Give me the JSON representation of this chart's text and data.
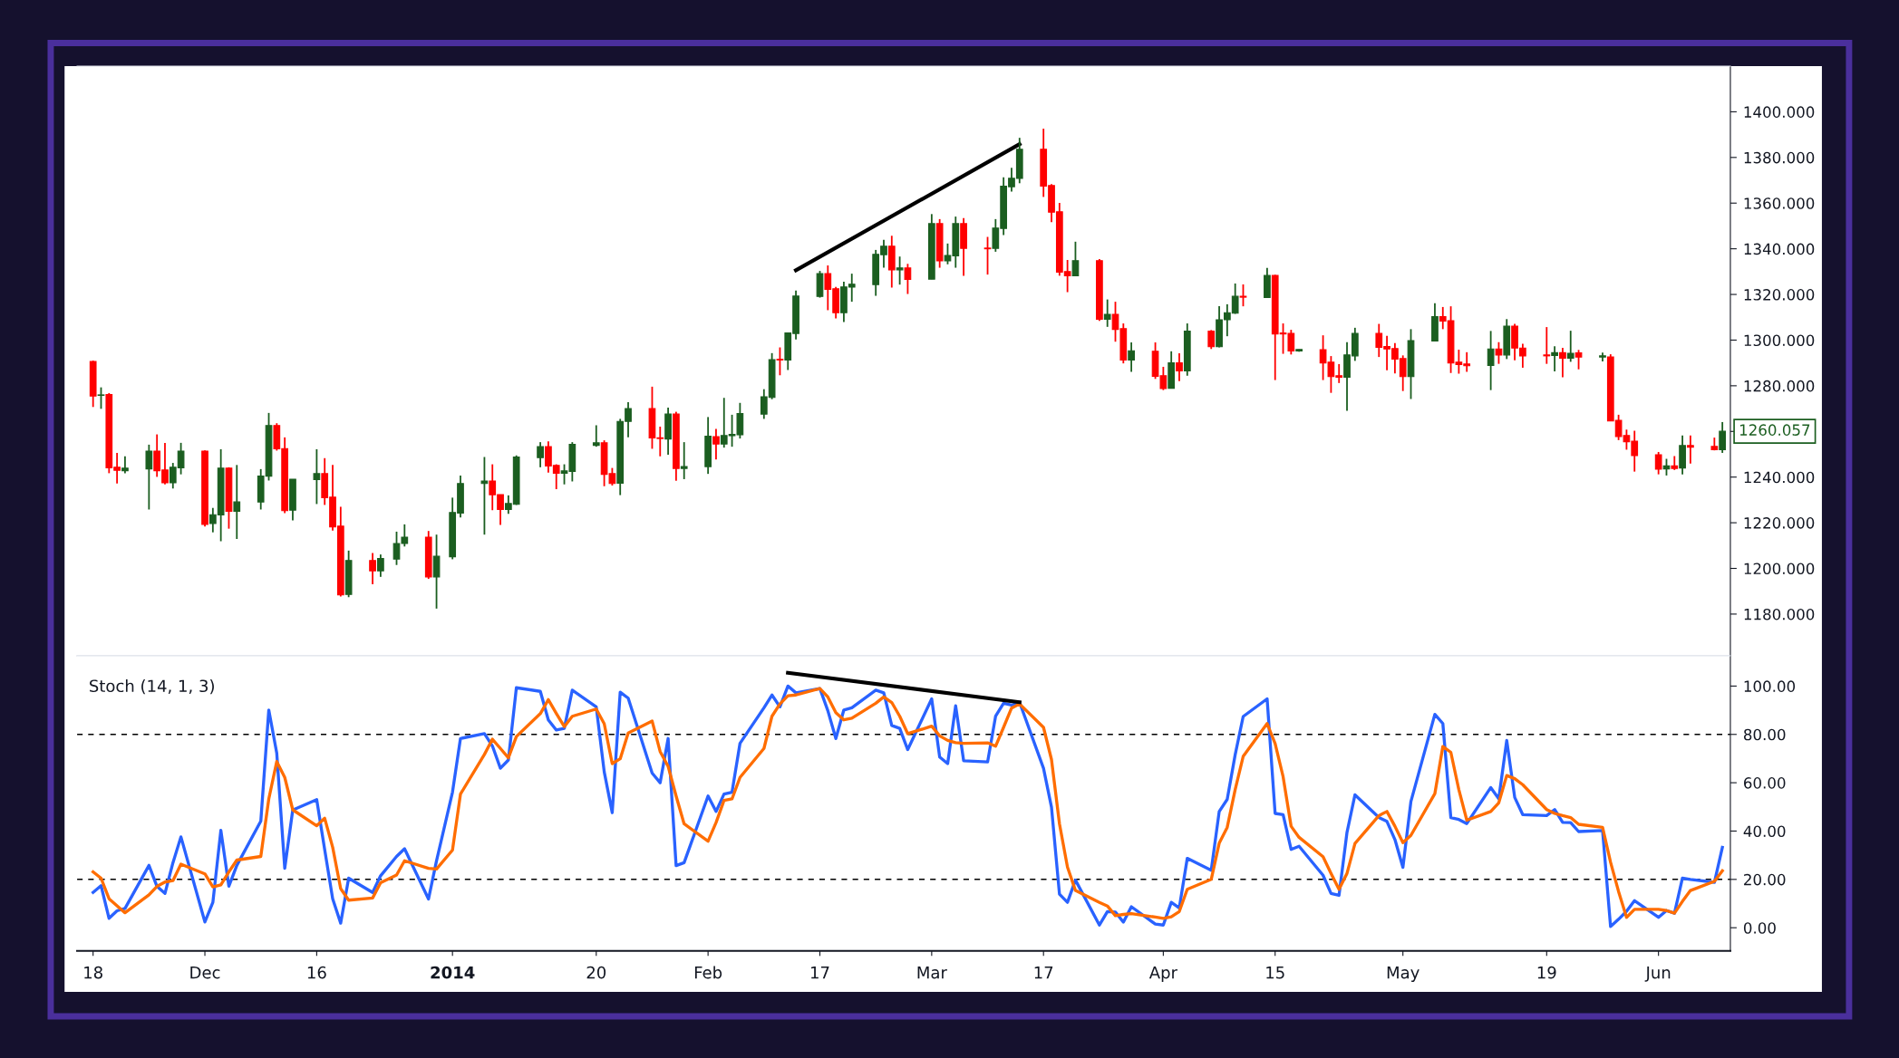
{
  "chart_data": [
    {
      "type": "candlestick",
      "x": [
        "2013-11-18",
        "2013-11-19",
        "2013-11-20",
        "2013-11-21",
        "2013-11-22",
        "2013-11-25",
        "2013-11-26",
        "2013-11-27",
        "2013-11-28",
        "2013-11-29",
        "2013-12-02",
        "2013-12-03",
        "2013-12-04",
        "2013-12-05",
        "2013-12-06",
        "2013-12-09",
        "2013-12-10",
        "2013-12-11",
        "2013-12-12",
        "2013-12-13",
        "2013-12-16",
        "2013-12-17",
        "2013-12-18",
        "2013-12-19",
        "2013-12-20",
        "2013-12-23",
        "2013-12-24",
        "2013-12-26",
        "2013-12-27",
        "2013-12-30",
        "2013-12-31",
        "2014-01-02",
        "2014-01-03",
        "2014-01-06",
        "2014-01-07",
        "2014-01-08",
        "2014-01-09",
        "2014-01-10",
        "2014-01-13",
        "2014-01-14",
        "2014-01-15",
        "2014-01-16",
        "2014-01-17",
        "2014-01-20",
        "2014-01-21",
        "2014-01-22",
        "2014-01-23",
        "2014-01-24",
        "2014-01-27",
        "2014-01-28",
        "2014-01-29",
        "2014-01-30",
        "2014-01-31",
        "2014-02-03",
        "2014-02-04",
        "2014-02-05",
        "2014-02-06",
        "2014-02-07",
        "2014-02-10",
        "2014-02-11",
        "2014-02-12",
        "2014-02-13",
        "2014-02-14",
        "2014-02-17",
        "2014-02-18",
        "2014-02-19",
        "2014-02-20",
        "2014-02-21",
        "2014-02-24",
        "2014-02-25",
        "2014-02-26",
        "2014-02-27",
        "2014-02-28",
        "2014-03-03",
        "2014-03-04",
        "2014-03-05",
        "2014-03-06",
        "2014-03-07",
        "2014-03-10",
        "2014-03-11",
        "2014-03-12",
        "2014-03-13",
        "2014-03-14",
        "2014-03-17",
        "2014-03-18",
        "2014-03-19",
        "2014-03-20",
        "2014-03-21",
        "2014-03-24",
        "2014-03-25",
        "2014-03-26",
        "2014-03-27",
        "2014-03-28",
        "2014-03-31",
        "2014-04-01",
        "2014-04-02",
        "2014-04-03",
        "2014-04-04",
        "2014-04-07",
        "2014-04-08",
        "2014-04-09",
        "2014-04-10",
        "2014-04-11",
        "2014-04-14",
        "2014-04-15",
        "2014-04-16",
        "2014-04-17",
        "2014-04-18",
        "2014-04-21",
        "2014-04-22",
        "2014-04-23",
        "2014-04-24",
        "2014-04-25",
        "2014-04-28",
        "2014-04-29",
        "2014-04-30",
        "2014-05-01",
        "2014-05-02",
        "2014-05-05",
        "2014-05-06",
        "2014-05-07",
        "2014-05-08",
        "2014-05-09",
        "2014-05-12",
        "2014-05-13",
        "2014-05-14",
        "2014-05-15",
        "2014-05-16",
        "2014-05-19",
        "2014-05-20",
        "2014-05-21",
        "2014-05-22",
        "2014-05-23",
        "2014-05-26",
        "2014-05-27",
        "2014-05-28",
        "2014-05-29",
        "2014-05-30",
        "2014-06-02",
        "2014-06-03",
        "2014-06-04",
        "2014-06-05",
        "2014-06-06",
        "2014-06-09",
        "2014-06-10"
      ],
      "ohlc": [
        [
          1290.6,
          1291,
          1270.7,
          1275.5
        ],
        [
          1275.8,
          1279.3,
          1269.9,
          1276.0
        ],
        [
          1276.2,
          1276.8,
          1241.7,
          1244.1
        ],
        [
          1244.3,
          1250.6,
          1237.2,
          1243.0
        ],
        [
          1242.8,
          1249.1,
          1241.7,
          1243.9
        ],
        [
          1243.6,
          1254.2,
          1225.8,
          1251.4
        ],
        [
          1251.4,
          1258.7,
          1240.1,
          1242.8
        ],
        [
          1243.1,
          1255.0,
          1236.8,
          1237.5
        ],
        [
          1237.5,
          1246.2,
          1235.0,
          1244.3
        ],
        [
          1244.1,
          1255.0,
          1241.2,
          1251.4
        ],
        [
          1251.4,
          1251.7,
          1218.4,
          1219.3
        ],
        [
          1219.7,
          1226.5,
          1215.8,
          1223.5
        ],
        [
          1223.4,
          1252.2,
          1211.9,
          1243.9
        ],
        [
          1243.9,
          1244.3,
          1217.4,
          1225.0
        ],
        [
          1225.0,
          1245.3,
          1212.9,
          1229.1
        ],
        [
          1229.1,
          1243.5,
          1225.8,
          1240.4
        ],
        [
          1240.4,
          1268.1,
          1238.5,
          1262.6
        ],
        [
          1262.6,
          1263.6,
          1251.6,
          1252.4
        ],
        [
          1252.5,
          1257.4,
          1224.2,
          1225.3
        ],
        [
          1225.5,
          1239.1,
          1221.0,
          1239.1
        ],
        [
          1238.9,
          1252.2,
          1228.2,
          1241.5
        ],
        [
          1241.5,
          1248.3,
          1227.8,
          1231.0
        ],
        [
          1231.2,
          1245.3,
          1216.6,
          1218.2
        ],
        [
          1218.5,
          1227.0,
          1187.7,
          1188.4
        ],
        [
          1188.6,
          1207.8,
          1187.4,
          1203.5
        ],
        [
          1203.5,
          1206.7,
          1193.1,
          1198.9
        ],
        [
          1198.9,
          1206.1,
          1196.3,
          1204.3
        ],
        [
          1204.1,
          1216.1,
          1201.5,
          1210.9
        ],
        [
          1210.9,
          1219.3,
          1209.6,
          1213.7
        ],
        [
          1213.7,
          1216.4,
          1195.4,
          1196.3
        ],
        [
          1196.3,
          1214.8,
          1182.4,
          1205.3
        ],
        [
          1205.1,
          1231.0,
          1204.0,
          1224.5
        ],
        [
          1224.2,
          1240.7,
          1222.3,
          1237.2
        ],
        [
          1237.2,
          1248.8,
          1214.8,
          1238.3
        ],
        [
          1238.3,
          1245.6,
          1225.5,
          1232.3
        ],
        [
          1232.3,
          1232.3,
          1219.0,
          1225.8
        ],
        [
          1225.8,
          1232.0,
          1223.9,
          1228.4
        ],
        [
          1228.1,
          1249.5,
          1227.8,
          1248.8
        ],
        [
          1248.5,
          1255.3,
          1244.3,
          1253.3
        ],
        [
          1253.3,
          1255.6,
          1242.0,
          1244.9
        ],
        [
          1245.1,
          1245.6,
          1234.7,
          1241.7
        ],
        [
          1241.7,
          1245.6,
          1236.8,
          1242.7
        ],
        [
          1242.5,
          1255.3,
          1238.1,
          1254.3
        ],
        [
          1253.9,
          1262.7,
          1253.3,
          1255.0
        ],
        [
          1255.0,
          1256.1,
          1236.0,
          1241.2
        ],
        [
          1241.5,
          1244.0,
          1236.3,
          1237.2
        ],
        [
          1237.3,
          1265.5,
          1232.1,
          1264.4
        ],
        [
          1264.4,
          1272.8,
          1257.4,
          1270.0
        ],
        [
          1270.0,
          1279.6,
          1252.4,
          1257.2
        ],
        [
          1257.2,
          1262.1,
          1249.1,
          1256.9
        ],
        [
          1256.7,
          1270.4,
          1249.8,
          1267.6
        ],
        [
          1267.6,
          1268.6,
          1238.4,
          1243.8
        ],
        [
          1243.8,
          1255.3,
          1239.1,
          1244.6
        ],
        [
          1244.6,
          1266.3,
          1241.4,
          1257.9
        ],
        [
          1257.7,
          1261.1,
          1247.7,
          1254.5
        ],
        [
          1254.5,
          1274.7,
          1252.9,
          1258.2
        ],
        [
          1258.1,
          1267.3,
          1253.3,
          1258.7
        ],
        [
          1258.5,
          1272.5,
          1256.9,
          1267.8
        ],
        [
          1267.6,
          1278.5,
          1265.5,
          1275.2
        ],
        [
          1274.9,
          1294.3,
          1274.1,
          1291.4
        ],
        [
          1291.6,
          1296.8,
          1284.6,
          1291.3
        ],
        [
          1291.3,
          1303.1,
          1286.9,
          1303.1
        ],
        [
          1302.9,
          1321.7,
          1300.3,
          1319.3
        ],
        [
          1319.1,
          1330.3,
          1318.6,
          1329.1
        ],
        [
          1329.1,
          1332.7,
          1313.1,
          1322.2
        ],
        [
          1322.5,
          1323.3,
          1309.5,
          1312.0
        ],
        [
          1312.0,
          1325.6,
          1307.9,
          1323.3
        ],
        [
          1323.2,
          1329.1,
          1316.8,
          1324.5
        ],
        [
          1324.3,
          1339.5,
          1319.4,
          1337.6
        ],
        [
          1337.4,
          1343.9,
          1331.7,
          1341.1
        ],
        [
          1341.1,
          1345.7,
          1323.0,
          1330.8
        ],
        [
          1330.8,
          1336.6,
          1324.3,
          1331.6
        ],
        [
          1331.6,
          1333.4,
          1320.2,
          1326.6
        ],
        [
          1326.7,
          1355.2,
          1326.7,
          1351.0
        ],
        [
          1351.0,
          1353.0,
          1331.7,
          1334.7
        ],
        [
          1334.7,
          1342.3,
          1333.2,
          1337.1
        ],
        [
          1336.9,
          1354.1,
          1331.7,
          1351.0
        ],
        [
          1351.0,
          1353.4,
          1328.2,
          1340.2
        ],
        [
          1340.3,
          1345.2,
          1328.7,
          1340.0
        ],
        [
          1340.2,
          1353.0,
          1338.7,
          1349.1
        ],
        [
          1348.9,
          1371.3,
          1346.0,
          1367.4
        ],
        [
          1367.2,
          1375.5,
          1365.1,
          1370.9
        ],
        [
          1370.8,
          1388.6,
          1368.7,
          1383.6
        ],
        [
          1383.6,
          1392.6,
          1362.7,
          1367.5
        ],
        [
          1367.7,
          1368.3,
          1351.7,
          1356.0
        ],
        [
          1356.2,
          1360.1,
          1328.2,
          1329.8
        ],
        [
          1330.0,
          1335.1,
          1321.0,
          1328.2
        ],
        [
          1328.2,
          1343.1,
          1328.2,
          1334.8
        ],
        [
          1334.8,
          1335.5,
          1308.4,
          1309.1
        ],
        [
          1309.1,
          1317.8,
          1305.8,
          1311.3
        ],
        [
          1311.3,
          1316.8,
          1299.3,
          1304.7
        ],
        [
          1305.0,
          1307.3,
          1289.8,
          1291.3
        ],
        [
          1291.3,
          1299.0,
          1286.1,
          1295.3
        ],
        [
          1295.1,
          1299.0,
          1283.0,
          1284.1
        ],
        [
          1284.4,
          1288.3,
          1278.1,
          1278.8
        ],
        [
          1278.9,
          1295.1,
          1278.9,
          1290.0
        ],
        [
          1290.0,
          1294.2,
          1282.0,
          1286.5
        ],
        [
          1286.5,
          1307.3,
          1284.4,
          1303.9
        ],
        [
          1303.9,
          1304.4,
          1296.1,
          1297.1
        ],
        [
          1297.1,
          1314.9,
          1296.8,
          1308.9
        ],
        [
          1308.9,
          1315.7,
          1301.7,
          1312.0
        ],
        [
          1311.8,
          1324.8,
          1311.5,
          1319.2
        ],
        [
          1319.2,
          1324.4,
          1314.8,
          1318.8
        ],
        [
          1318.7,
          1331.6,
          1318.7,
          1328.3
        ],
        [
          1328.3,
          1328.6,
          1282.5,
          1302.7
        ],
        [
          1303.1,
          1307.3,
          1294.0,
          1302.7
        ],
        [
          1302.9,
          1304.5,
          1293.7,
          1295.2
        ],
        [
          1295.2,
          1295.9,
          1294.9,
          1295.9
        ],
        [
          1295.8,
          1302.1,
          1282.5,
          1290.0
        ],
        [
          1290.3,
          1293.0,
          1276.9,
          1284.0
        ],
        [
          1284.4,
          1289.5,
          1281.2,
          1283.7
        ],
        [
          1283.7,
          1299.1,
          1269.0,
          1293.5
        ],
        [
          1293.1,
          1305.4,
          1290.9,
          1302.9
        ],
        [
          1302.9,
          1307.1,
          1292.6,
          1296.8
        ],
        [
          1297.2,
          1301.9,
          1286.8,
          1296.1
        ],
        [
          1296.3,
          1298.7,
          1285.4,
          1291.7
        ],
        [
          1291.9,
          1293.3,
          1277.7,
          1284.0
        ],
        [
          1284.0,
          1304.8,
          1274.2,
          1299.8
        ],
        [
          1299.6,
          1316.2,
          1299.6,
          1310.3
        ],
        [
          1310.3,
          1314.5,
          1304.8,
          1308.3
        ],
        [
          1308.5,
          1314.8,
          1285.6,
          1290.0
        ],
        [
          1290.3,
          1295.8,
          1285.3,
          1289.3
        ],
        [
          1289.5,
          1294.7,
          1286.1,
          1288.8
        ],
        [
          1288.9,
          1304.0,
          1278.1,
          1296.1
        ],
        [
          1296.1,
          1299.1,
          1289.6,
          1293.5
        ],
        [
          1293.5,
          1309.2,
          1291.7,
          1306.1
        ],
        [
          1306.1,
          1307.1,
          1291.2,
          1296.5
        ],
        [
          1296.5,
          1298.4,
          1287.9,
          1293.1
        ],
        [
          1293.5,
          1305.7,
          1289.6,
          1293.1
        ],
        [
          1293.3,
          1297.3,
          1286.3,
          1294.5
        ],
        [
          1294.5,
          1296.6,
          1283.7,
          1292.1
        ],
        [
          1292.1,
          1304.1,
          1290.5,
          1294.2
        ],
        [
          1294.4,
          1295.7,
          1287.2,
          1292.6
        ],
        [
          1292.6,
          1294.5,
          1290.7,
          1293.1
        ],
        [
          1292.6,
          1293.8,
          1264.6,
          1264.6
        ],
        [
          1264.8,
          1267.3,
          1256.2,
          1257.8
        ],
        [
          1258.2,
          1260.8,
          1252.0,
          1255.5
        ],
        [
          1255.7,
          1260.3,
          1242.4,
          1249.4
        ],
        [
          1249.8,
          1251.0,
          1241.2,
          1243.5
        ],
        [
          1243.6,
          1248.0,
          1240.7,
          1244.9
        ],
        [
          1244.9,
          1249.2,
          1243.1,
          1243.8
        ],
        [
          1244.0,
          1258.2,
          1241.2,
          1253.8
        ],
        [
          1253.8,
          1258.2,
          1245.9,
          1253.1
        ],
        [
          1253.4,
          1257.3,
          1251.7,
          1252.0
        ],
        [
          1252.0,
          1264.1,
          1250.6,
          1260.057
        ]
      ],
      "series": [
        {
          "type": "line",
          "color": "#000000",
          "x": [
            "2014-02-14",
            "2014-03-14"
          ],
          "values": [
            1330.6,
            1385.8
          ]
        }
      ],
      "annotations": [
        {
          "text": "1260.057",
          "x": "2014-06-10",
          "y": 1260.057
        }
      ],
      "xlim": [
        "2013-11-16",
        "2014-06-11"
      ],
      "ylim": [
        1161.7,
        1420
      ],
      "yticks": [
        {
          "value": 1180,
          "label": "1180.000"
        },
        {
          "value": 1200,
          "label": "1200.000"
        },
        {
          "value": 1220,
          "label": "1220.000"
        },
        {
          "value": 1240,
          "label": "1240.000"
        },
        {
          "value": 1260,
          "label": null
        },
        {
          "value": 1280,
          "label": "1280.000"
        },
        {
          "value": 1300,
          "label": "1300.000"
        },
        {
          "value": 1320,
          "label": "1320.000"
        },
        {
          "value": 1340,
          "label": "1340.000"
        },
        {
          "value": 1360,
          "label": "1360.000"
        },
        {
          "value": 1380,
          "label": "1380.000"
        },
        {
          "value": 1400,
          "label": "1400.000"
        }
      ],
      "tick_labels": "y"
    },
    {
      "type": "line",
      "title": "Stoch (14, 1, 3)",
      "x": [
        "2013-11-18",
        "2013-11-19",
        "2013-11-20",
        "2013-11-21",
        "2013-11-22",
        "2013-11-25",
        "2013-11-26",
        "2013-11-27",
        "2013-11-28",
        "2013-11-29",
        "2013-12-02",
        "2013-12-03",
        "2013-12-04",
        "2013-12-05",
        "2013-12-06",
        "2013-12-09",
        "2013-12-10",
        "2013-12-11",
        "2013-12-12",
        "2013-12-13",
        "2013-12-16",
        "2013-12-17",
        "2013-12-18",
        "2013-12-19",
        "2013-12-20",
        "2013-12-23",
        "2013-12-24",
        "2013-12-26",
        "2013-12-27",
        "2013-12-30",
        "2013-12-31",
        "2014-01-02",
        "2014-01-03",
        "2014-01-06",
        "2014-01-07",
        "2014-01-08",
        "2014-01-09",
        "2014-01-10",
        "2014-01-13",
        "2014-01-14",
        "2014-01-15",
        "2014-01-16",
        "2014-01-17",
        "2014-01-20",
        "2014-01-21",
        "2014-01-22",
        "2014-01-23",
        "2014-01-24",
        "2014-01-27",
        "2014-01-28",
        "2014-01-29",
        "2014-01-30",
        "2014-01-31",
        "2014-02-03",
        "2014-02-04",
        "2014-02-05",
        "2014-02-06",
        "2014-02-07",
        "2014-02-10",
        "2014-02-11",
        "2014-02-12",
        "2014-02-13",
        "2014-02-14",
        "2014-02-17",
        "2014-02-18",
        "2014-02-19",
        "2014-02-20",
        "2014-02-21",
        "2014-02-24",
        "2014-02-25",
        "2014-02-26",
        "2014-02-27",
        "2014-02-28",
        "2014-03-03",
        "2014-03-04",
        "2014-03-05",
        "2014-03-06",
        "2014-03-07",
        "2014-03-10",
        "2014-03-11",
        "2014-03-12",
        "2014-03-13",
        "2014-03-14",
        "2014-03-17",
        "2014-03-18",
        "2014-03-19",
        "2014-03-20",
        "2014-03-21",
        "2014-03-24",
        "2014-03-25",
        "2014-03-26",
        "2014-03-27",
        "2014-03-28",
        "2014-03-31",
        "2014-04-01",
        "2014-04-02",
        "2014-04-03",
        "2014-04-04",
        "2014-04-07",
        "2014-04-08",
        "2014-04-09",
        "2014-04-10",
        "2014-04-11",
        "2014-04-14",
        "2014-04-15",
        "2014-04-16",
        "2014-04-17",
        "2014-04-18",
        "2014-04-21",
        "2014-04-22",
        "2014-04-23",
        "2014-04-24",
        "2014-04-25",
        "2014-04-28",
        "2014-04-29",
        "2014-04-30",
        "2014-05-01",
        "2014-05-02",
        "2014-05-05",
        "2014-05-06",
        "2014-05-07",
        "2014-05-08",
        "2014-05-09",
        "2014-05-12",
        "2014-05-13",
        "2014-05-14",
        "2014-05-15",
        "2014-05-16",
        "2014-05-19",
        "2014-05-20",
        "2014-05-21",
        "2014-05-22",
        "2014-05-23",
        "2014-05-26",
        "2014-05-27",
        "2014-05-28",
        "2014-05-29",
        "2014-05-30",
        "2014-06-02",
        "2014-06-03",
        "2014-06-04",
        "2014-06-05",
        "2014-06-06",
        "2014-06-09",
        "2014-06-10"
      ],
      "series": [
        {
          "color": "#2962ff",
          "values": [
            14.6,
            17.4,
            3.9,
            7.0,
            8.0,
            25.8,
            17.1,
            14.2,
            26.9,
            37.6,
            2.4,
            10.5,
            40.3,
            17.2,
            25.8,
            44.1,
            90.1,
            72.2,
            24.6,
            48.7,
            53.0,
            32.3,
            12.0,
            1.9,
            20.5,
            14.6,
            21.5,
            29.5,
            32.7,
            11.9,
            27.7,
            56.1,
            78.3,
            80.3,
            75.2,
            66.0,
            69.4,
            99.3,
            97.8,
            86.0,
            81.8,
            82.5,
            98.3,
            91.4,
            64.5,
            47.6,
            97.5,
            95.0,
            64.0,
            60.0,
            78.3,
            25.7,
            26.9,
            54.5,
            48.1,
            55.3,
            56.1,
            76.3,
            91.0,
            96.3,
            91.4,
            100.0,
            97.2,
            99.0,
            89.8,
            78.3,
            90.1,
            91.0,
            98.3,
            97.2,
            83.7,
            82.5,
            73.7,
            94.7,
            70.6,
            67.9,
            91.8,
            69.1,
            68.6,
            87.5,
            92.9,
            92.1,
            93.3,
            66.0,
            49.9,
            13.9,
            10.5,
            19.7,
            1.1,
            6.7,
            6.5,
            2.3,
            8.7,
            1.5,
            1.1,
            10.5,
            8.2,
            28.7,
            23.8,
            48.1,
            53.1,
            71.6,
            87.4,
            94.7,
            47.3,
            46.8,
            32.4,
            33.7,
            21.7,
            14.2,
            13.4,
            39.5,
            55.0,
            45.6,
            44.0,
            36.5,
            25.0,
            52.2,
            88.3,
            84.5,
            45.6,
            44.8,
            43.1,
            58.0,
            53.4,
            77.5,
            53.9,
            46.8,
            46.4,
            48.9,
            43.6,
            43.5,
            39.8,
            40.2,
            0.5,
            3.5,
            6.8,
            11.2,
            4.3,
            7.1,
            6.0,
            20.5,
            20.0,
            18.8,
            33.2
          ]
        },
        {
          "color": "#ff6d00",
          "values": [
            23.1,
            20.5,
            12.0,
            9.1,
            6.2,
            13.6,
            17.1,
            18.9,
            19.5,
            26.3,
            22.3,
            16.9,
            17.7,
            23.1,
            28.0,
            29.5,
            53.3,
            68.8,
            62.2,
            48.8,
            42.2,
            45.3,
            33.3,
            16.2,
            11.4,
            12.3,
            18.6,
            21.8,
            27.7,
            24.6,
            24.3,
            32.1,
            55.3,
            71.7,
            78.0,
            74.2,
            70.3,
            79.1,
            88.6,
            94.4,
            88.7,
            83.2,
            87.5,
            90.5,
            84.4,
            67.9,
            69.9,
            80.6,
            85.5,
            72.9,
            66.8,
            54.5,
            43.0,
            35.8,
            43.5,
            52.7,
            53.3,
            62.2,
            74.2,
            87.5,
            92.6,
            96.0,
            96.3,
            99.0,
            95.5,
            89.0,
            86.0,
            86.7,
            92.9,
            95.5,
            93.2,
            87.5,
            80.3,
            83.4,
            79.4,
            77.5,
            76.6,
            76.3,
            76.5,
            75.1,
            82.9,
            90.9,
            92.6,
            82.9,
            69.6,
            43.0,
            25.1,
            15.4,
            10.5,
            9.0,
            5.0,
            5.5,
            5.8,
            4.4,
            3.9,
            4.5,
            6.7,
            15.9,
            20.0,
            35.0,
            41.5,
            57.2,
            70.9,
            84.5,
            76.2,
            62.5,
            42.0,
            37.4,
            29.4,
            22.5,
            15.9,
            22.5,
            34.9,
            46.4,
            48.1,
            42.0,
            35.2,
            38.2,
            55.5,
            75.0,
            72.6,
            57.2,
            44.5,
            48.1,
            51.7,
            63.0,
            61.7,
            59.2,
            48.9,
            47.3,
            46.4,
            45.6,
            42.8,
            41.5,
            27.1,
            15.0,
            4.3,
            7.6,
            7.6,
            7.1,
            6.0,
            10.9,
            15.4,
            19.2,
            23.6
          ]
        },
        {
          "type": "line",
          "color": "#000000",
          "x": [
            "2014-02-13",
            "2014-03-14"
          ],
          "values": [
            105.5,
            93.3
          ]
        }
      ],
      "ref_lines": [
        {
          "axis": "y",
          "value": 20,
          "label": null,
          "color": "#000000",
          "line_style": "dashed"
        },
        {
          "axis": "y",
          "value": 80,
          "label": null,
          "color": "#000000",
          "line_style": "dashed"
        }
      ],
      "xlim": [
        "2013-11-16",
        "2014-06-11"
      ],
      "xticks": [
        {
          "value": "2013-11-18",
          "label": "18"
        },
        {
          "value": "2013-12-02",
          "label": "Dec"
        },
        {
          "value": "2013-12-16",
          "label": "16"
        },
        {
          "value": "2014-01-02",
          "label": "2014"
        },
        {
          "value": "2014-01-20",
          "label": "20"
        },
        {
          "value": "2014-02-03",
          "label": "Feb"
        },
        {
          "value": "2014-02-17",
          "label": "17"
        },
        {
          "value": "2014-03-03",
          "label": "Mar"
        },
        {
          "value": "2014-03-17",
          "label": "17"
        },
        {
          "value": "2014-04-01",
          "label": "Apr"
        },
        {
          "value": "2014-04-15",
          "label": "15"
        },
        {
          "value": "2014-05-01",
          "label": "May"
        },
        {
          "value": "2014-05-19",
          "label": "19"
        },
        {
          "value": "2014-06-02",
          "label": "Jun"
        }
      ],
      "ylim": [
        -9.6,
        112.5
      ],
      "yticks": [
        {
          "value": 0,
          "label": "0.00"
        },
        {
          "value": 20,
          "label": "20.00"
        },
        {
          "value": 40,
          "label": "40.00"
        },
        {
          "value": 60,
          "label": "60.00"
        },
        {
          "value": 80,
          "label": "80.00"
        },
        {
          "value": 100,
          "label": "100.00"
        }
      ],
      "marker": "none",
      "line_style": "solid"
    }
  ]
}
